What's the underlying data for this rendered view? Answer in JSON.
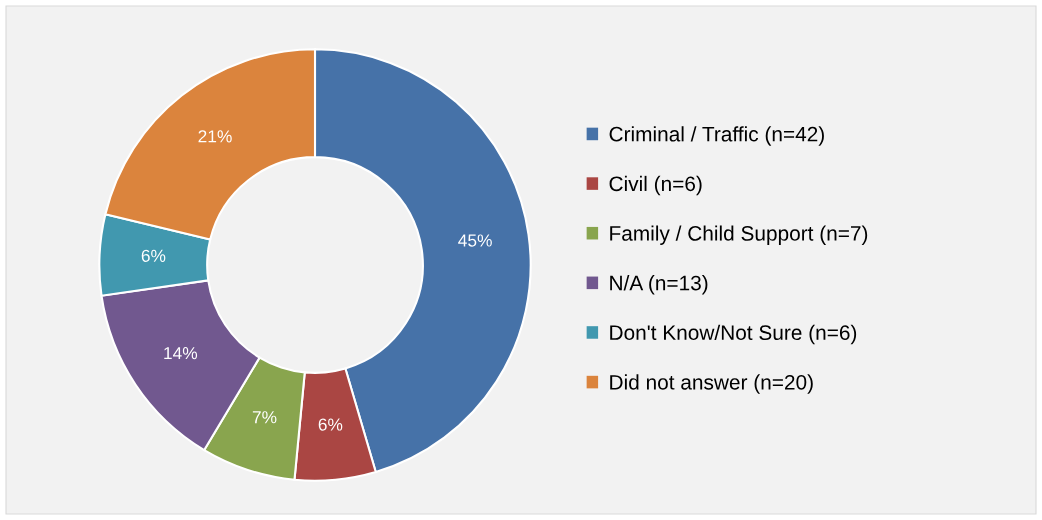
{
  "chart_data": {
    "type": "donut",
    "categories": [
      "Criminal / Traffic (n=42)",
      "Civil (n=6)",
      "Family / Child Support (n=7)",
      "N/A (n=13)",
      "Don't Know/Not Sure (n=6)",
      "Did not answer (n=20)"
    ],
    "values": [
      45,
      6,
      7,
      14,
      6,
      21
    ],
    "value_labels": [
      "45%",
      "6%",
      "7%",
      "14%",
      "6%",
      "21%"
    ],
    "colors": [
      "#4672a8",
      "#aa4643",
      "#89a54e",
      "#71588f",
      "#4198af",
      "#db843d"
    ],
    "legend": "right"
  }
}
